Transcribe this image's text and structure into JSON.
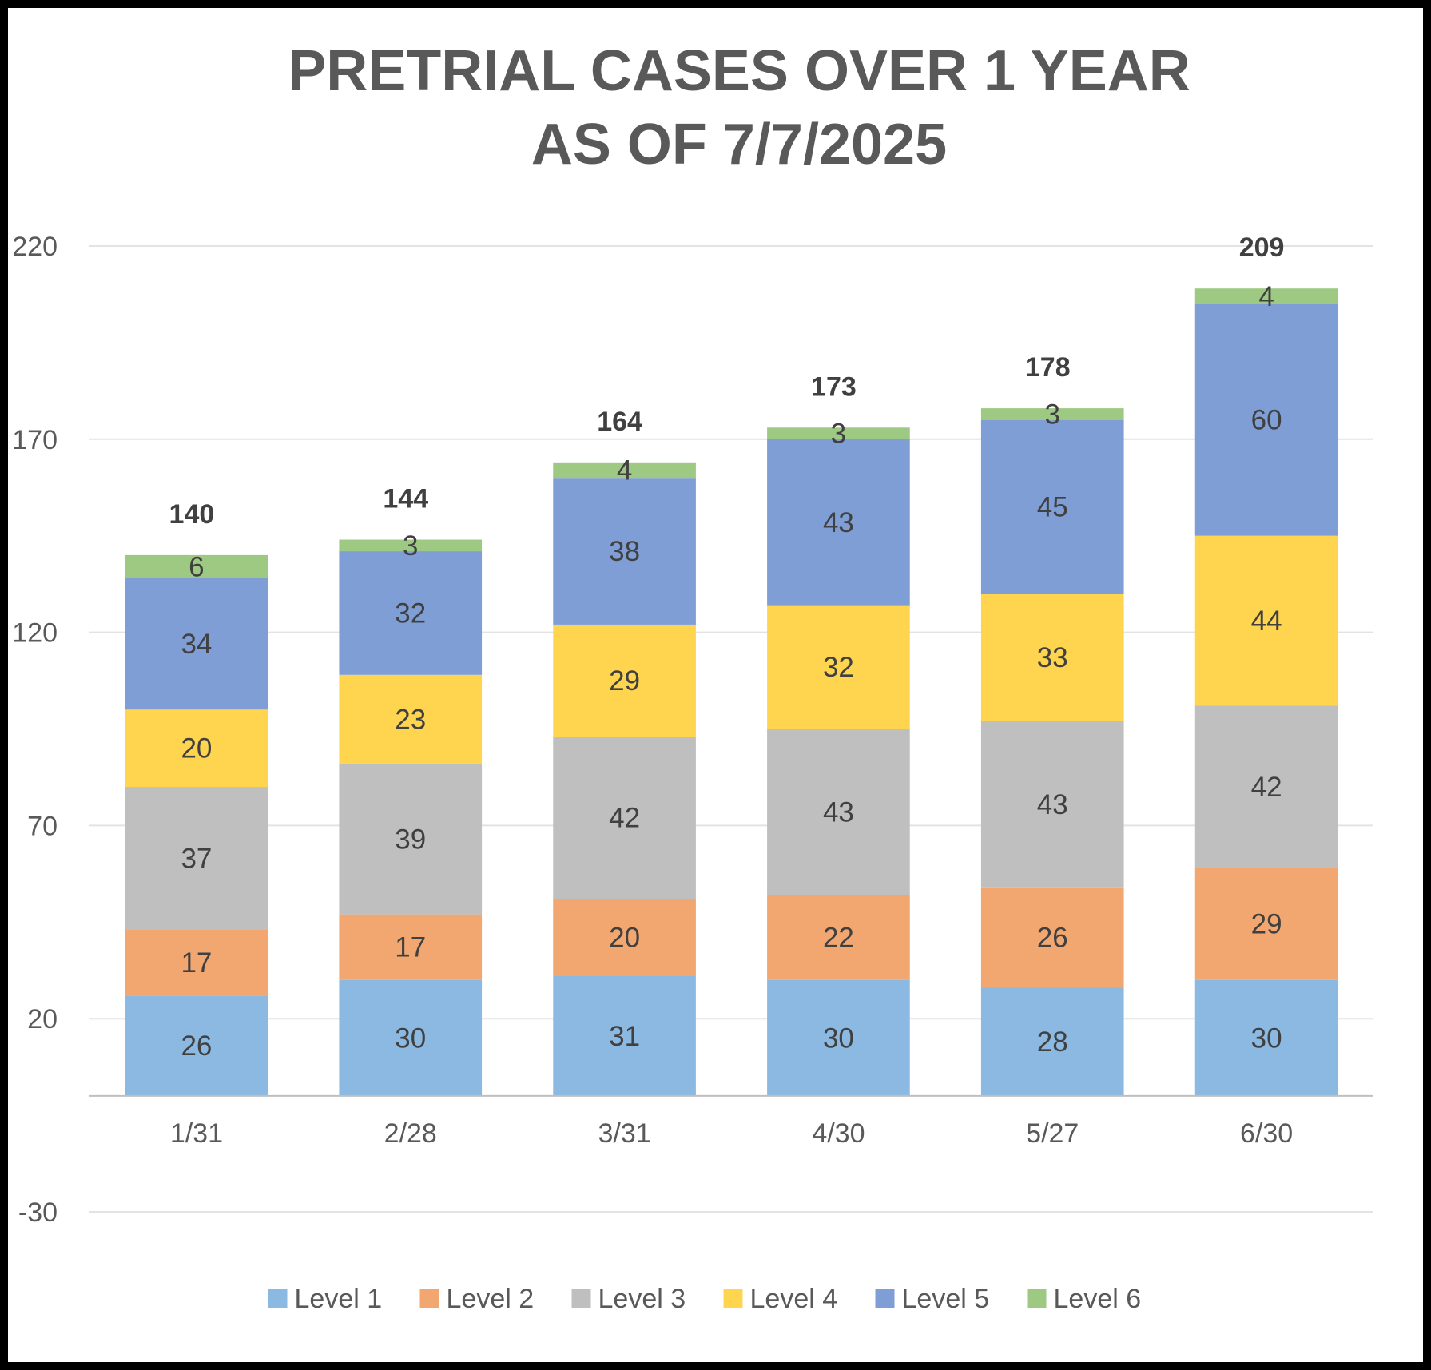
{
  "chart_data": {
    "type": "bar",
    "stacked": true,
    "title_lines": [
      "PRETRIAL CASES OVER 1 YEAR",
      "AS OF 7/7/2025"
    ],
    "categories": [
      "1/31",
      "2/28",
      "3/31",
      "4/30",
      "5/27",
      "6/30"
    ],
    "series": [
      {
        "name": "Level 1",
        "color": "#8CB9E2",
        "values": [
          26,
          30,
          31,
          30,
          28,
          30
        ]
      },
      {
        "name": "Level 2",
        "color": "#F1A76F",
        "values": [
          17,
          17,
          20,
          22,
          26,
          29
        ]
      },
      {
        "name": "Level 3",
        "color": "#BFBFBF",
        "values": [
          37,
          39,
          42,
          43,
          43,
          42
        ]
      },
      {
        "name": "Level 4",
        "color": "#FFD54F",
        "values": [
          20,
          23,
          29,
          32,
          33,
          44
        ]
      },
      {
        "name": "Level 5",
        "color": "#7F9ED6",
        "values": [
          34,
          32,
          38,
          43,
          45,
          60
        ]
      },
      {
        "name": "Level 6",
        "color": "#9DC983",
        "values": [
          6,
          3,
          4,
          3,
          3,
          4
        ]
      }
    ],
    "totals": [
      140,
      144,
      164,
      173,
      178,
      209
    ],
    "y_ticks": [
      -30,
      20,
      70,
      120,
      170,
      220
    ],
    "ylim": [
      -30,
      220
    ],
    "grid": true,
    "legend_position": "bottom",
    "xlabel": "",
    "ylabel": ""
  }
}
